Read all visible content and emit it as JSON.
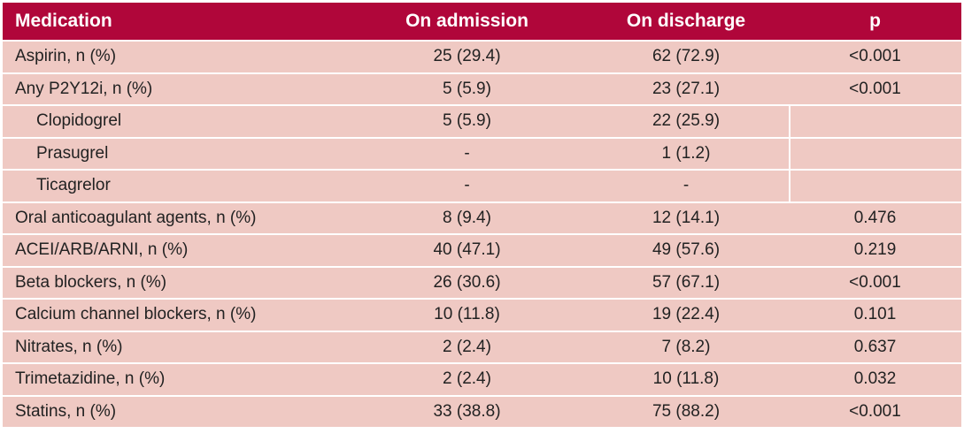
{
  "columns": [
    "Medication",
    "On admission",
    "On discharge",
    "p"
  ],
  "rows": [
    {
      "medication": "Aspirin, n (%)",
      "admission": "25 (29.4)",
      "discharge": "62 (72.9)",
      "p": "<0.001",
      "sub": false
    },
    {
      "medication": "Any P2Y12i, n (%)",
      "admission": "5 (5.9)",
      "discharge": "23 (27.1)",
      "p": "<0.001",
      "sub": false
    },
    {
      "medication": "Clopidogrel",
      "admission": "5 (5.9)",
      "discharge": "22 (25.9)",
      "p": "",
      "sub": true
    },
    {
      "medication": "Prasugrel",
      "admission": "-",
      "discharge": "1 (1.2)",
      "p": "",
      "sub": true
    },
    {
      "medication": "Ticagrelor",
      "admission": "-",
      "discharge": "-",
      "p": "",
      "sub": true
    },
    {
      "medication": "Oral anticoagulant agents, n (%)",
      "admission": "8 (9.4)",
      "discharge": "12 (14.1)",
      "p": "0.476",
      "sub": false
    },
    {
      "medication": "ACEI/ARB/ARNI, n (%)",
      "admission": "40 (47.1)",
      "discharge": "49 (57.6)",
      "p": "0.219",
      "sub": false
    },
    {
      "medication": "Beta blockers, n (%)",
      "admission": "26 (30.6)",
      "discharge": "57 (67.1)",
      "p": "<0.001",
      "sub": false
    },
    {
      "medication": "Calcium channel blockers, n (%)",
      "admission": "10 (11.8)",
      "discharge": "19 (22.4)",
      "p": "0.101",
      "sub": false
    },
    {
      "medication": "Nitrates, n (%)",
      "admission": "2 (2.4)",
      "discharge": "7 (8.2)",
      "p": "0.637",
      "sub": false
    },
    {
      "medication": "Trimetazidine, n (%)",
      "admission": "2 (2.4)",
      "discharge": "10 (11.8)",
      "p": "0.032",
      "sub": false
    },
    {
      "medication": "Statins, n (%)",
      "admission": "33 (38.8)",
      "discharge": "75 (88.2)",
      "p": "<0.001",
      "sub": false
    }
  ],
  "colors": {
    "header_bg": "#b0063a",
    "row_bg": "#efc9c3",
    "header_text": "#ffffff"
  }
}
